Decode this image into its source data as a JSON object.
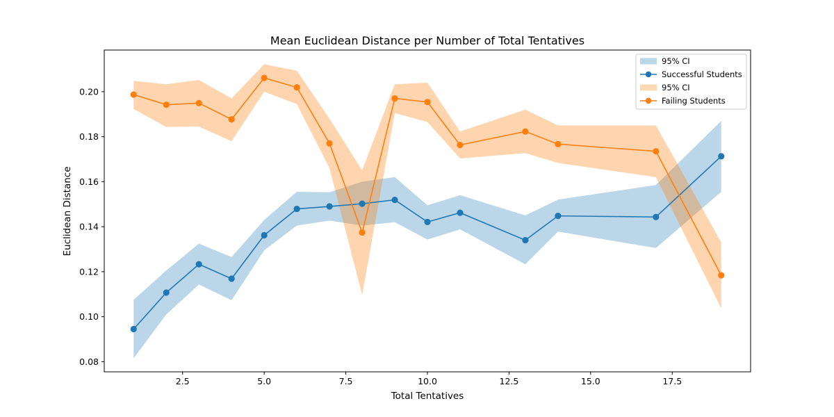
{
  "chart_data": {
    "type": "line",
    "title": "Mean Euclidean Distance per Number of Total Tentatives",
    "xlabel": "Total Tentatives",
    "ylabel": "Euclidean Distance",
    "xlim": [
      0.1,
      19.9
    ],
    "ylim": [
      0.0755,
      0.2185
    ],
    "xticks": [
      2.5,
      5.0,
      7.5,
      10.0,
      12.5,
      15.0,
      17.5
    ],
    "xtick_labels": [
      "2.5",
      "5.0",
      "7.5",
      "10.0",
      "12.5",
      "15.0",
      "17.5"
    ],
    "yticks": [
      0.08,
      0.1,
      0.12,
      0.14,
      0.16,
      0.18,
      0.2
    ],
    "ytick_labels": [
      "0.08",
      "0.10",
      "0.12",
      "0.14",
      "0.16",
      "0.18",
      "0.20"
    ],
    "grid": false,
    "legend_position": "top-right",
    "legend": [
      {
        "label": "95% CI",
        "kind": "band",
        "color": "#1f77b4"
      },
      {
        "label": "Successful Students",
        "kind": "line",
        "color": "#1f77b4"
      },
      {
        "label": "95% CI",
        "kind": "band",
        "color": "#ff7f0e"
      },
      {
        "label": "Failing Students",
        "kind": "line",
        "color": "#ff7f0e"
      }
    ],
    "series": [
      {
        "name": "Successful Students",
        "color": "#1f77b4",
        "x": [
          1,
          2,
          3,
          4,
          5,
          6,
          7,
          8,
          9,
          10,
          11,
          13,
          14,
          17,
          19
        ],
        "y": [
          0.0945,
          0.1107,
          0.1233,
          0.1169,
          0.1362,
          0.1479,
          0.149,
          0.1502,
          0.1519,
          0.1421,
          0.1462,
          0.134,
          0.1448,
          0.1443,
          0.1713
        ],
        "ci_upper": [
          0.1075,
          0.1205,
          0.1325,
          0.1265,
          0.143,
          0.1555,
          0.1553,
          0.16,
          0.162,
          0.1495,
          0.154,
          0.145,
          0.152,
          0.1585,
          0.187
        ],
        "ci_lower": [
          0.0815,
          0.101,
          0.1143,
          0.1073,
          0.1295,
          0.1405,
          0.1427,
          0.1405,
          0.142,
          0.1343,
          0.1388,
          0.1233,
          0.1378,
          0.1305,
          0.1555
        ]
      },
      {
        "name": "Failing Students",
        "color": "#ff7f0e",
        "x": [
          1,
          2,
          3,
          4,
          5,
          6,
          7,
          8,
          9,
          10,
          11,
          13,
          14,
          17,
          19
        ],
        "y": [
          0.1987,
          0.1942,
          0.1949,
          0.1877,
          0.2061,
          0.2019,
          0.177,
          0.1374,
          0.197,
          0.1954,
          0.1763,
          0.1823,
          0.1767,
          0.1735,
          0.1184
        ],
        "ci_upper": [
          0.2048,
          0.2033,
          0.2052,
          0.197,
          0.2122,
          0.2093,
          0.188,
          0.165,
          0.2033,
          0.204,
          0.1823,
          0.192,
          0.185,
          0.185,
          0.133
        ],
        "ci_lower": [
          0.1923,
          0.1843,
          0.1845,
          0.178,
          0.2,
          0.1945,
          0.166,
          0.1097,
          0.1905,
          0.1865,
          0.1703,
          0.1727,
          0.1683,
          0.162,
          0.1037
        ]
      }
    ]
  }
}
